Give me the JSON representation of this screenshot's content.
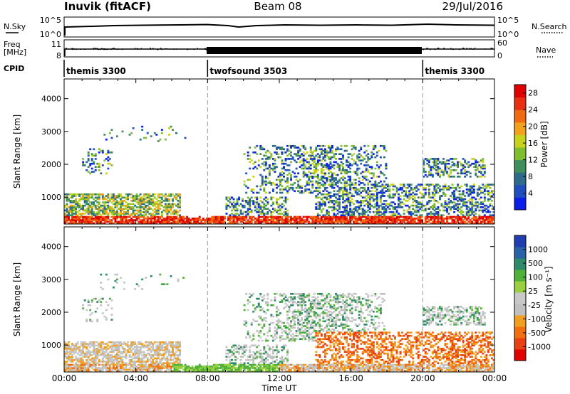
{
  "header": {
    "station": "Inuvik (fitACF)",
    "beam": "Beam 08",
    "date": "29/Jul/2016"
  },
  "panels": {
    "nsky": {
      "label": "N.Sky",
      "ticks_left": [
        "10^5",
        "10^0"
      ],
      "right_label": "N.Search",
      "ticks_right": [
        "10^5",
        "10^0"
      ]
    },
    "freq": {
      "label": "Freq",
      "unit": "[MHz]",
      "ticks_left": [
        "11",
        "8"
      ],
      "right_label": "Nave",
      "ticks_right": [
        "60",
        "0"
      ]
    },
    "cpid": {
      "label": "CPID",
      "segments": [
        {
          "name": "themis 3300",
          "start_h": 0,
          "end_h": 8
        },
        {
          "name": "twofsound 3503",
          "start_h": 8,
          "end_h": 20
        },
        {
          "name": "themis 3300",
          "start_h": 20,
          "end_h": 24
        }
      ]
    }
  },
  "colors": {
    "power_scale": [
      "#0a1fe8",
      "#1f4fbf",
      "#2e6b8a",
      "#3f8f5a",
      "#7fbf2f",
      "#c8d21a",
      "#f2a21a",
      "#f06a12",
      "#e83010",
      "#e00000"
    ],
    "velocity_scale": [
      "#1f3fb0",
      "#2a62a8",
      "#2f8a6a",
      "#4fb03a",
      "#9ad040",
      "#c8c8c8",
      "#c0c0c0",
      "#f0a020",
      "#f07010",
      "#e84010",
      "#e00000"
    ]
  },
  "chart_data": [
    {
      "type": "heatmap",
      "title": "Power",
      "xlabel": "",
      "ylabel": "Slant Range [km]",
      "xlim": [
        0,
        24
      ],
      "ylim": [
        180,
        4600
      ],
      "yticks": [
        "1000",
        "2000",
        "3000",
        "4000"
      ],
      "colorbar": {
        "label": "Power [dB]",
        "ticks": [
          "4",
          "8",
          "12",
          "16",
          "20",
          "24",
          "28"
        ],
        "range": [
          0,
          30
        ]
      }
    },
    {
      "type": "heatmap",
      "title": "Velocity",
      "xlabel": "Time UT",
      "ylabel": "Slant Range [km]",
      "xlim": [
        0,
        24
      ],
      "ylim": [
        180,
        4600
      ],
      "xticks": [
        "00:00",
        "04:00",
        "08:00",
        "12:00",
        "16:00",
        "20:00",
        "00:00"
      ],
      "yticks": [
        "1000",
        "2000",
        "3000",
        "4000"
      ],
      "colorbar": {
        "label": "Velocity [m s⁻¹]",
        "ticks": [
          "1000",
          "500",
          "100",
          "25",
          "-25",
          "-100",
          "-500",
          "-1000"
        ]
      }
    }
  ]
}
